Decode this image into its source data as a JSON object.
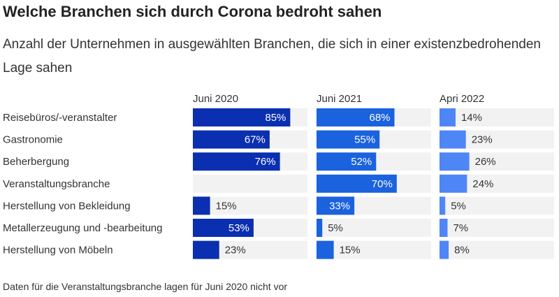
{
  "title": "Welche Branchen sich durch Corona bedroht sahen",
  "subtitle": "Anzahl der Unternehmen in ausgewählten Branchen, die sich in einer existenzbedrohenden Lage sahen",
  "footnote": "Daten für die Veranstaltungsbranche lagen für Juni 2020 nicht vor",
  "colors": {
    "juni_2020": "#0a2fb0",
    "juni_2021": "#1a62de",
    "april_2022": "#4f86f7",
    "track": "#f2f2f2"
  },
  "chart_data": {
    "type": "bar",
    "orientation": "horizontal",
    "panels": [
      "Juni 2020",
      "Juni 2021",
      "Apri 2022"
    ],
    "xlim": [
      0,
      100
    ],
    "unit": "%",
    "grid": false,
    "legend": "none",
    "categories": [
      "Reisebüros/-veranstalter",
      "Gastronomie",
      "Beherbergung",
      "Veranstaltungsbranche",
      "Herstellung von Bekleidung",
      "Metallerzeugung und -bearbeitung",
      "Herstellung von Möbeln"
    ],
    "series": [
      {
        "name": "Juni 2020",
        "values": [
          85,
          67,
          76,
          null,
          15,
          53,
          23
        ]
      },
      {
        "name": "Juni 2021",
        "values": [
          68,
          55,
          52,
          70,
          33,
          5,
          15
        ]
      },
      {
        "name": "Apri 2022",
        "values": [
          14,
          23,
          26,
          24,
          5,
          7,
          8
        ]
      }
    ]
  }
}
